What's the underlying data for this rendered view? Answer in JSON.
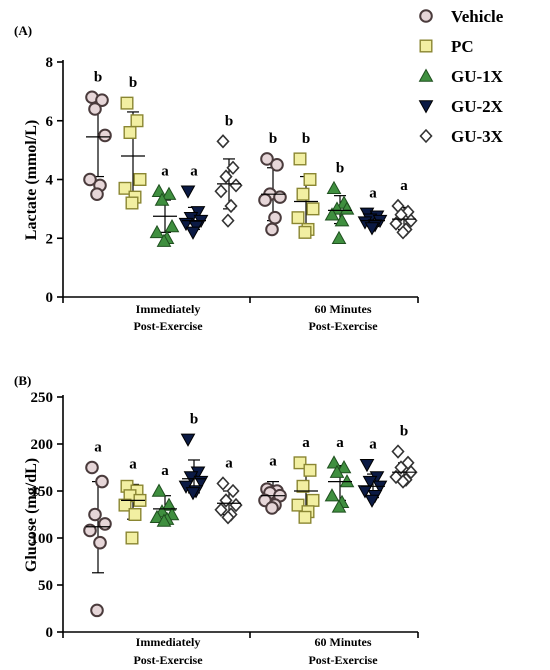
{
  "legend": [
    {
      "name": "Vehicle",
      "marker": "circle",
      "fill": "#e6d6d8"
    },
    {
      "name": "PC",
      "marker": "square",
      "fill": "#f2efa2"
    },
    {
      "name": "GU-1X",
      "marker": "triangle-up",
      "fill": "#3f8f3f"
    },
    {
      "name": "GU-2X",
      "marker": "triangle-down",
      "fill": "#0b1a44"
    },
    {
      "name": "GU-3X",
      "marker": "diamond",
      "fill": "#ffffff"
    }
  ],
  "chart_data": [
    {
      "panel_label": "(A)",
      "type": "scatter",
      "ylabel": "Lactate (mmol/L)",
      "ylim": [
        0,
        8
      ],
      "yticks": [
        "0",
        "2",
        "4",
        "6",
        "8"
      ],
      "groups": [
        {
          "line1": "Immediately",
          "line2": "Post-Exercise"
        },
        {
          "line1": "60 Minutes",
          "line2": "Post-Exercise"
        }
      ],
      "series": [
        {
          "name": "Vehicle",
          "points": [
            [
              6.8,
              6.7,
              6.4,
              5.5,
              4.0,
              3.8,
              3.5
            ],
            [
              4.7,
              4.5,
              3.5,
              3.4,
              3.3,
              2.7,
              2.3
            ]
          ],
          "mean": [
            5.45,
            3.5
          ],
          "sd_low": [
            4.1,
            2.6
          ],
          "sd_high": [
            6.7,
            4.4
          ],
          "letters": [
            "b",
            "b"
          ]
        },
        {
          "name": "PC",
          "points": [
            [
              6.6,
              6.0,
              5.6,
              4.0,
              3.7,
              3.4,
              3.2
            ],
            [
              4.7,
              4.0,
              3.5,
              3.0,
              2.7,
              2.3,
              2.2
            ]
          ],
          "mean": [
            4.8,
            3.25
          ],
          "sd_low": [
            3.3,
            2.4
          ],
          "sd_high": [
            6.3,
            4.1
          ],
          "letters": [
            "b",
            "b"
          ]
        },
        {
          "name": "GU-1X",
          "points": [
            [
              3.6,
              3.5,
              3.3,
              2.4,
              2.2,
              2.0,
              1.9
            ],
            [
              3.7,
              3.2,
              3.0,
              3.0,
              2.8,
              2.6,
              2.0
            ]
          ],
          "mean": [
            2.75,
            2.95
          ],
          "sd_low": [
            2.2,
            2.5
          ],
          "sd_high": [
            3.3,
            3.45
          ],
          "letters": [
            "a",
            "b"
          ]
        },
        {
          "name": "GU-2X",
          "points": [
            [
              3.6,
              2.9,
              2.7,
              2.6,
              2.5,
              2.4,
              2.2
            ],
            [
              2.85,
              2.75,
              2.65,
              2.6,
              2.55,
              2.45,
              2.35
            ]
          ],
          "mean": [
            2.6,
            2.6
          ],
          "sd_low": [
            2.3,
            2.4
          ],
          "sd_high": [
            3.05,
            2.85
          ],
          "letters": [
            "a",
            "a"
          ]
        },
        {
          "name": "GU-3X",
          "points": [
            [
              5.3,
              4.4,
              4.1,
              3.8,
              3.6,
              3.1,
              2.6
            ],
            [
              3.1,
              2.9,
              2.8,
              2.6,
              2.5,
              2.3,
              2.2
            ]
          ],
          "mean": [
            3.85,
            2.65
          ],
          "sd_low": [
            3.0,
            2.3
          ],
          "sd_high": [
            4.7,
            3.05
          ],
          "letters": [
            "b",
            "a"
          ]
        }
      ]
    },
    {
      "panel_label": "(B)",
      "type": "scatter",
      "ylabel": "Glucose (mg/dL)",
      "ylim": [
        0,
        250
      ],
      "yticks": [
        "0",
        "50",
        "100",
        "150",
        "200",
        "250"
      ],
      "groups": [
        {
          "line1": "Immediately",
          "line2": "Post-Exercise"
        },
        {
          "line1": "60 Minutes",
          "line2": "Post-Exercise"
        }
      ],
      "series": [
        {
          "name": "Vehicle",
          "points": [
            [
              175,
              160,
              125,
              115,
              108,
              95,
              23
            ],
            [
              152,
              150,
              148,
              145,
              140,
              135,
              132
            ]
          ],
          "mean": [
            112,
            145
          ],
          "sd_low": [
            63,
            135
          ],
          "sd_high": [
            160,
            160
          ],
          "letters": [
            "a",
            "a"
          ]
        },
        {
          "name": "PC",
          "points": [
            [
              155,
              150,
              145,
              140,
              135,
              125,
              100
            ],
            [
              180,
              172,
              155,
              140,
              135,
              128,
              122
            ]
          ],
          "mean": [
            140,
            150
          ],
          "sd_low": [
            120,
            128
          ],
          "sd_high": [
            157,
            175
          ],
          "letters": [
            "a",
            "a"
          ]
        },
        {
          "name": "GU-1X",
          "points": [
            [
              150,
              135,
              128,
              125,
              122,
              120,
              118
            ],
            [
              180,
              175,
              170,
              160,
              145,
              138,
              133
            ]
          ],
          "mean": [
            131,
            160
          ],
          "sd_low": [
            118,
            140
          ],
          "sd_high": [
            145,
            177
          ],
          "letters": [
            "a",
            "a"
          ]
        },
        {
          "name": "GU-2X",
          "points": [
            [
              205,
              170,
              165,
              160,
              155,
              150,
              148
            ],
            [
              178,
              165,
              160,
              155,
              150,
              145,
              140
            ]
          ],
          "mean": [
            163,
            155
          ],
          "sd_low": [
            148,
            143
          ],
          "sd_high": [
            183,
            168
          ],
          "letters": [
            "b",
            "a"
          ]
        },
        {
          "name": "GU-3X",
          "points": [
            [
              158,
              150,
              140,
              135,
              130,
              125,
              122
            ],
            [
              192,
              180,
              175,
              170,
              165,
              162,
              160
            ]
          ],
          "mean": [
            137,
            170
          ],
          "sd_low": [
            125,
            160
          ],
          "sd_high": [
            150,
            180
          ],
          "letters": [
            "a",
            "b"
          ]
        }
      ]
    }
  ]
}
